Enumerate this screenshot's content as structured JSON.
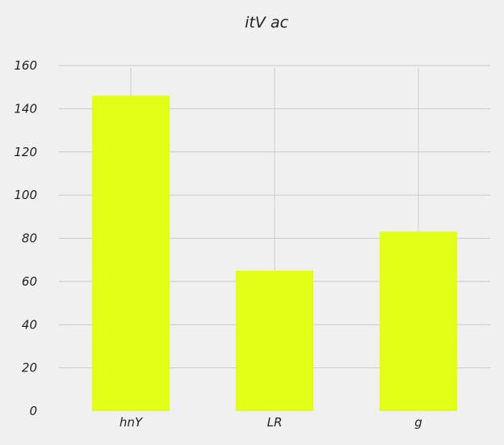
{
  "chart_data": {
    "type": "bar",
    "title": "itV  ac",
    "xlabel": "",
    "ylabel": "",
    "categories": [
      "hnY",
      "LR",
      "g"
    ],
    "values": [
      146,
      65,
      83
    ],
    "ylim": [
      0,
      160
    ],
    "yticks": [
      0,
      20,
      40,
      60,
      80,
      100,
      120,
      140,
      160
    ],
    "grid": true,
    "bar_color": "#e1ff17",
    "grid_color": "#cbcbcb",
    "background_color": "#f0f0f0"
  }
}
